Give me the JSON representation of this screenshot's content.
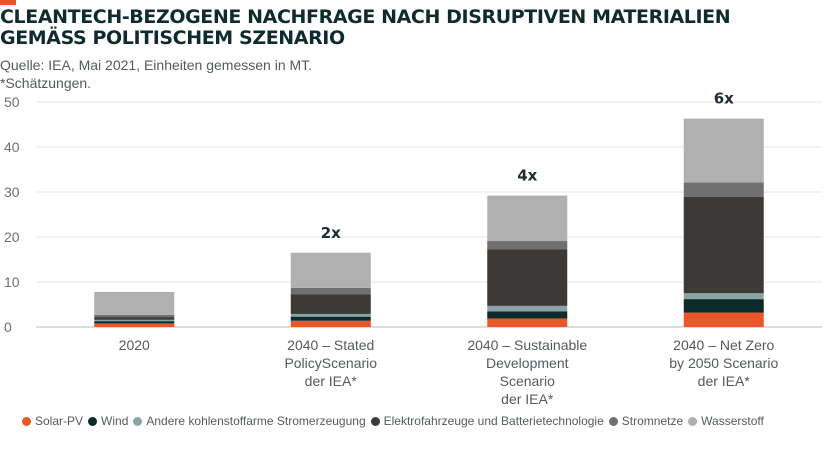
{
  "header": {
    "title": "CLEANTECH-BEZOGENE NACHFRAGE NACH DISRUPTIVEN MATERIALIEN GEMÄSS POLITISCHEM SZENARIO",
    "source": "Quelle: IEA, Mai 2021, Einheiten gemessen in MT.",
    "note": "*Schätzungen.",
    "accent_color": "#e8562a"
  },
  "chart_data": {
    "type": "bar",
    "stacked": true,
    "categories": [
      [
        "2020"
      ],
      [
        "2040 – Stated",
        "PolicyScenario",
        "der IEA*"
      ],
      [
        "2040 – Sustainable",
        "Development",
        "Scenario",
        "der IEA*"
      ],
      [
        "2040 – Net Zero",
        "by 2050 Scenario",
        "der IEA*"
      ]
    ],
    "series": [
      {
        "name": "Solar-PV",
        "color": "#e8562a",
        "values": [
          0.8,
          1.4,
          1.9,
          3.2
        ]
      },
      {
        "name": "Wind",
        "color": "#0e2b2c",
        "values": [
          0.5,
          0.9,
          1.6,
          3.0
        ]
      },
      {
        "name": "Andere kohlenstoffarme Stromerzeugung",
        "color": "#8aa4a6",
        "values": [
          0.3,
          0.6,
          1.2,
          1.3
        ]
      },
      {
        "name": "Elektrofahrzeuge und Batterietechnologie",
        "color": "#3c3936",
        "values": [
          0.6,
          4.4,
          12.6,
          21.4
        ]
      },
      {
        "name": "Stromnetze",
        "color": "#6f6f6f",
        "values": [
          0.5,
          1.4,
          1.8,
          3.2
        ]
      },
      {
        "name": "Wasserstoff",
        "color": "#b0b0b0",
        "values": [
          5.1,
          7.8,
          10.1,
          14.2
        ]
      }
    ],
    "multipliers": [
      "",
      "2x",
      "4x",
      "6x"
    ],
    "ylim": [
      0,
      50
    ],
    "yticks": [
      0,
      10,
      20,
      30,
      40,
      50
    ],
    "grid": true,
    "legend_position": "bottom"
  }
}
